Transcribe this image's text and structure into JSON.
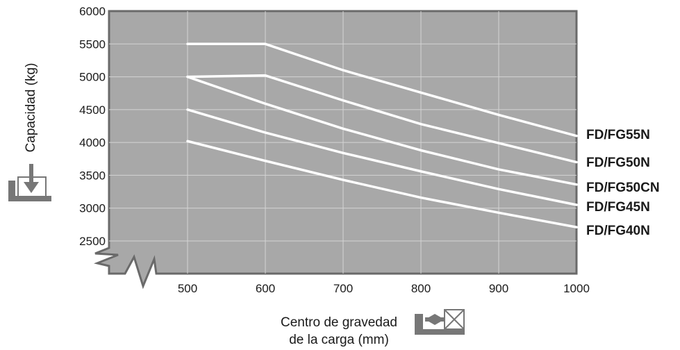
{
  "chart_data": {
    "type": "line",
    "xlabel": [
      "Centro de gravedad",
      "de la carga (mm)"
    ],
    "ylabel": "Capacidad (kg)",
    "xlim": [
      400,
      1000
    ],
    "ylim": [
      2000,
      6000
    ],
    "x_ticks": [
      "500",
      "600",
      "700",
      "800",
      "900",
      "1000"
    ],
    "y_ticks": [
      "2500",
      "3000",
      "3500",
      "4000",
      "4500",
      "5000",
      "5500",
      "6000"
    ],
    "grid": true,
    "axis_break": true,
    "background": "#a8a8a8",
    "line_color": "#ffffff",
    "series": [
      {
        "name": "FD/FG55N",
        "x": [
          500,
          600,
          700,
          800,
          900,
          1000
        ],
        "y": [
          5500,
          5500,
          5100,
          4760,
          4420,
          4100
        ]
      },
      {
        "name": "FD/FG50N",
        "x": [
          500,
          600,
          700,
          800,
          900,
          1000
        ],
        "y": [
          5000,
          5020,
          4640,
          4280,
          3990,
          3700
        ]
      },
      {
        "name": "FD/FG50CN",
        "x": [
          500,
          600,
          700,
          800,
          900,
          1000
        ],
        "y": [
          5000,
          4590,
          4210,
          3880,
          3590,
          3360
        ]
      },
      {
        "name": "FD/FG45N",
        "x": [
          500,
          600,
          700,
          800,
          900,
          1000
        ],
        "y": [
          4500,
          4150,
          3840,
          3560,
          3290,
          3050
        ]
      },
      {
        "name": "FD/FG40N",
        "x": [
          500,
          600,
          700,
          800,
          900,
          1000
        ],
        "y": [
          4020,
          3720,
          3430,
          3160,
          2930,
          2710
        ]
      }
    ]
  }
}
